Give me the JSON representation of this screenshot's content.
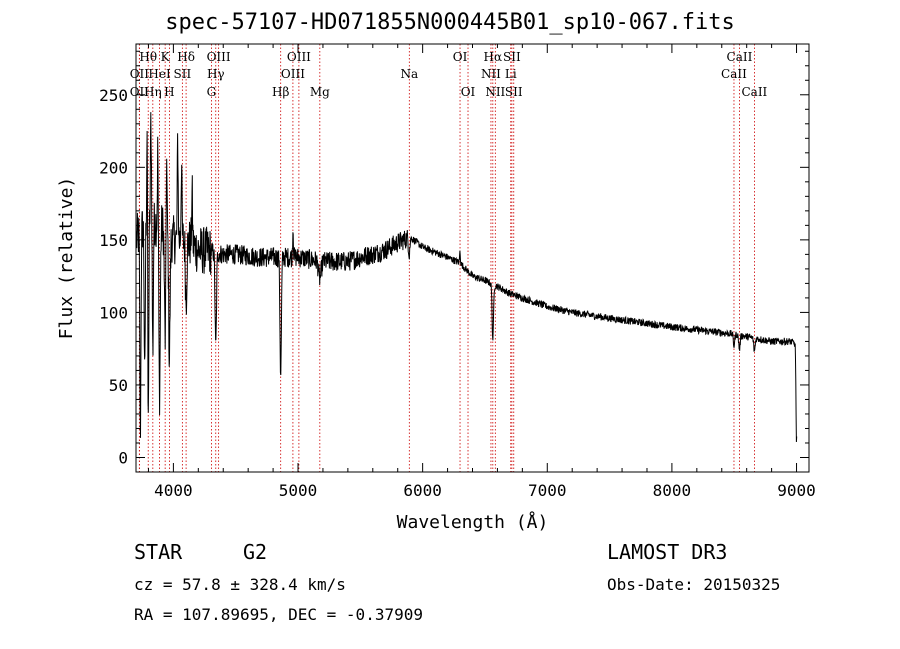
{
  "chart_data": {
    "type": "line",
    "title": "spec-57107-HD071855N000445B01_sp10-067.fits",
    "xlabel": "Wavelength (Å)",
    "ylabel": "Flux (relative)",
    "xlim": [
      3700,
      9100
    ],
    "ylim": [
      -10,
      285
    ],
    "xticks": [
      4000,
      5000,
      6000,
      7000,
      8000,
      9000
    ],
    "yticks": [
      0,
      50,
      100,
      150,
      200,
      250
    ],
    "continuum": {
      "x": [
        3700,
        3800,
        3900,
        4000,
        4100,
        4200,
        4300,
        4400,
        4500,
        4700,
        5000,
        5200,
        5400,
        5500,
        5600,
        5700,
        5800,
        5900,
        6000,
        6200,
        6300,
        6400,
        6500,
        6600,
        6700,
        6800,
        7000,
        7200,
        7500,
        8000,
        8500,
        8800,
        8950,
        9000
      ],
      "y": [
        150,
        165,
        160,
        150,
        150,
        143,
        142,
        140,
        140,
        138,
        138,
        135,
        135,
        138,
        140,
        143,
        148,
        152,
        145,
        138,
        134,
        125,
        122,
        118,
        113,
        110,
        104,
        100,
        96,
        90,
        85,
        80,
        80,
        78
      ]
    },
    "absorption": [
      {
        "x": 3735,
        "depth": 140,
        "width": 6
      },
      {
        "x": 3770,
        "depth": 110,
        "width": 6
      },
      {
        "x": 3798,
        "depth": 150,
        "width": 6
      },
      {
        "x": 3835,
        "depth": 90,
        "width": 6
      },
      {
        "x": 3889,
        "depth": 115,
        "width": 8
      },
      {
        "x": 3934,
        "depth": 75,
        "width": 8
      },
      {
        "x": 3968,
        "depth": 85,
        "width": 8
      },
      {
        "x": 4102,
        "depth": 40,
        "width": 8
      },
      {
        "x": 4340,
        "depth": 65,
        "width": 8
      },
      {
        "x": 4861,
        "depth": 80,
        "width": 8
      },
      {
        "x": 5175,
        "depth": 12,
        "width": 15
      },
      {
        "x": 5893,
        "depth": 10,
        "width": 8
      },
      {
        "x": 6563,
        "depth": 38,
        "width": 8
      },
      {
        "x": 8498,
        "depth": 8,
        "width": 8
      },
      {
        "x": 8542,
        "depth": 10,
        "width": 8
      },
      {
        "x": 8662,
        "depth": 9,
        "width": 8
      },
      {
        "x": 9000,
        "depth": 70,
        "width": 6
      }
    ],
    "spikes": [
      {
        "x": 3790,
        "height": 85
      },
      {
        "x": 3820,
        "height": 70
      },
      {
        "x": 3875,
        "height": 55
      },
      {
        "x": 3945,
        "height": 60
      },
      {
        "x": 4035,
        "height": 70
      },
      {
        "x": 4065,
        "height": 55
      },
      {
        "x": 4150,
        "height": 35
      },
      {
        "x": 4960,
        "height": 20
      },
      {
        "x": 6300,
        "height": 8
      }
    ],
    "lines": [
      {
        "name": "OII",
        "x": 3727,
        "row": 3
      },
      {
        "name": "Hθ",
        "x": 3798,
        "row": 1
      },
      {
        "name": "OII",
        "x": 3727,
        "row": 2
      },
      {
        "name": "Hη",
        "x": 3835,
        "row": 3
      },
      {
        "name": "HeI",
        "x": 3889,
        "row": 2
      },
      {
        "name": "K",
        "x": 3934,
        "row": 1
      },
      {
        "name": "H",
        "x": 3968,
        "row": 3
      },
      {
        "name": "SII",
        "x": 4072,
        "row": 2
      },
      {
        "name": "Hδ",
        "x": 4102,
        "row": 1
      },
      {
        "name": "G",
        "x": 4305,
        "row": 3
      },
      {
        "name": "Hγ",
        "x": 4340,
        "row": 2
      },
      {
        "name": "OIII",
        "x": 4363,
        "row": 1
      },
      {
        "name": "Hβ",
        "x": 4861,
        "row": 3
      },
      {
        "name": "OIII",
        "x": 4959,
        "row": 2
      },
      {
        "name": "OIII",
        "x": 5007,
        "row": 1
      },
      {
        "name": "Mg",
        "x": 5175,
        "row": 3
      },
      {
        "name": "Na",
        "x": 5893,
        "row": 2
      },
      {
        "name": "OI",
        "x": 6300,
        "row": 1
      },
      {
        "name": "OI",
        "x": 6364,
        "row": 3
      },
      {
        "name": "NII",
        "x": 6548,
        "row": 2
      },
      {
        "name": "Hα",
        "x": 6563,
        "row": 1
      },
      {
        "name": "NII",
        "x": 6583,
        "row": 3
      },
      {
        "name": "Li",
        "x": 6707,
        "row": 2
      },
      {
        "name": "SII",
        "x": 6716,
        "row": 1
      },
      {
        "name": "SII",
        "x": 6731,
        "row": 3
      },
      {
        "name": "CaII",
        "x": 8498,
        "row": 2
      },
      {
        "name": "CaII",
        "x": 8542,
        "row": 1
      },
      {
        "name": "CaII",
        "x": 8662,
        "row": 3
      }
    ]
  },
  "info": {
    "object_class": "STAR",
    "subclass": "G2",
    "survey": "LAMOST DR3",
    "redshift": "cz = 57.8 ± 328.4 km/s",
    "obs_date": "Obs-Date: 20150325",
    "coords": "RA = 107.89695, DEC =  -0.37909"
  },
  "colors": {
    "line_marker": "#cc0000",
    "spectrum": "#000000"
  }
}
